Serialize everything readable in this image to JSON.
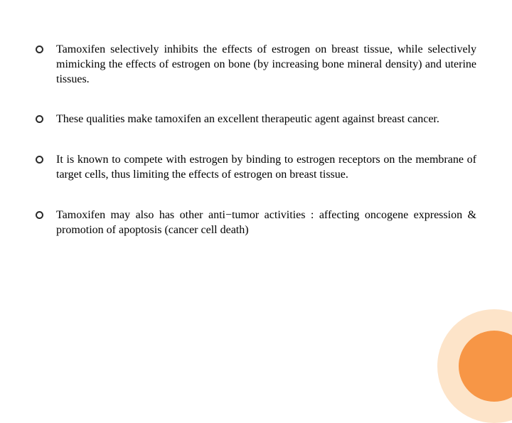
{
  "slide": {
    "bullets": [
      {
        "text": "Tamoxifen selectively inhibits the effects of estrogen on breast tissue, while selectively mimicking the effects of estrogen on bone (by increasing bone mineral density) and uterine tissues."
      },
      {
        "text": "These qualities make tamoxifen an excellent therapeutic agent against breast cancer."
      },
      {
        "text": "It is known to compete with estrogen by binding to estrogen receptors on the membrane of target cells, thus limiting the effects of estrogen on breast tissue."
      },
      {
        "text": "Tamoxifen may also has other anti−tumor activities : affecting oncogene expression & promotion of apoptosis (cancer cell death)"
      }
    ]
  },
  "styling": {
    "background_color": "#ffffff",
    "text_color": "#000000",
    "bullet_border_color": "#2a2a2a",
    "outer_circle_color": "#fde4c9",
    "inner_circle_color": "#f79646",
    "font_family": "Georgia, Times New Roman, serif",
    "font_size_pt": 12,
    "text_align": "justify",
    "line_height": 1.3,
    "bullet_style": "hollow-circle",
    "slide_width": 720,
    "slide_height": 540
  }
}
